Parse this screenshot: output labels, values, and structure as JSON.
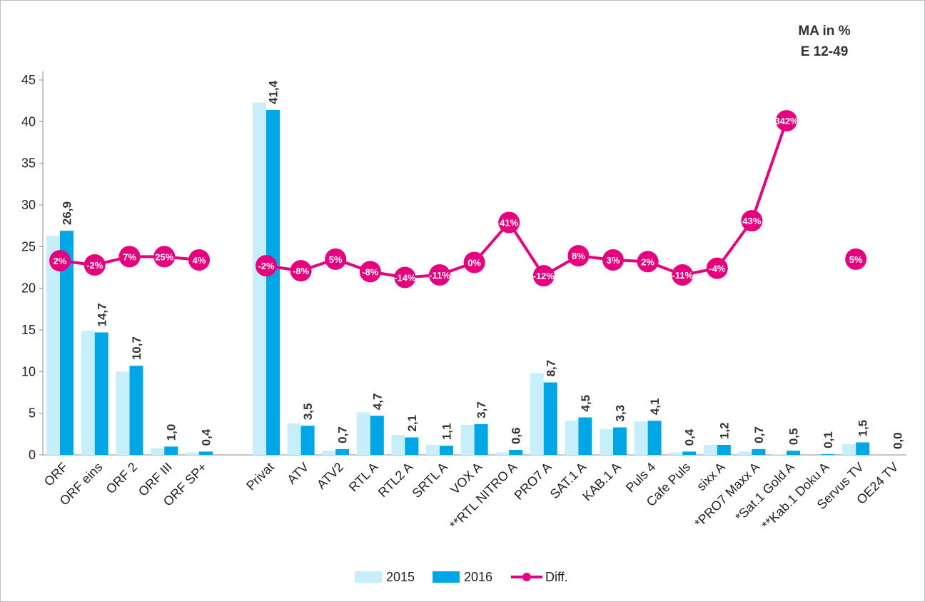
{
  "chart_data": {
    "type": "bar",
    "title_lines": [
      "MA in %",
      "E 12-49"
    ],
    "ylim": [
      0,
      45
    ],
    "yticks": [
      0,
      5,
      10,
      15,
      20,
      25,
      30,
      35,
      40,
      45
    ],
    "groups": [
      [
        "ORF",
        "ORF eins",
        "ORF 2",
        "ORF III",
        "ORF SP+"
      ],
      [
        "Privat",
        "ATV",
        "ATV2",
        "RTL A",
        "RTL2 A",
        "SRTL A",
        "VOX A",
        "**RTL NITRO A",
        "PRO7 A",
        "SAT.1 A",
        "KAB.1 A",
        "Puls 4",
        "Cafe Puls",
        "sixx A",
        "*PRO7 Maxx A",
        "*Sat.1 Gold A",
        "**Kab.1 Doku A",
        "Servus TV",
        "OE24 TV"
      ]
    ],
    "categories": [
      "ORF",
      "ORF eins",
      "ORF 2",
      "ORF III",
      "ORF SP+",
      "Privat",
      "ATV",
      "ATV2",
      "RTL A",
      "RTL2 A",
      "SRTL A",
      "VOX A",
      "**RTL NITRO A",
      "PRO7 A",
      "SAT.1 A",
      "KAB.1 A",
      "Puls 4",
      "Cafe Puls",
      "sixx A",
      "*PRO7 Maxx A",
      "*Sat.1 Gold A",
      "**Kab.1 Doku A",
      "Servus TV",
      "OE24 TV"
    ],
    "series": [
      {
        "name": "2015",
        "color": "#c6effb",
        "values": [
          26.3,
          14.9,
          10.0,
          0.8,
          0.3,
          42.3,
          3.8,
          0.5,
          5.1,
          2.4,
          1.2,
          3.6,
          0.3,
          9.8,
          4.1,
          3.1,
          4.0,
          0.3,
          1.2,
          0.4,
          0.1,
          0.0,
          1.3,
          0.0
        ]
      },
      {
        "name": "2016",
        "color": "#00a6e6",
        "values": [
          26.9,
          14.7,
          10.7,
          1.0,
          0.4,
          41.4,
          3.5,
          0.7,
          4.7,
          2.1,
          1.1,
          3.7,
          0.6,
          8.7,
          4.5,
          3.3,
          4.1,
          0.4,
          1.2,
          0.7,
          0.5,
          0.1,
          1.5,
          0.0
        ],
        "labels": [
          "26,9",
          "14,7",
          "10,7",
          "1,0",
          "0,4",
          "41,4",
          "3,5",
          "0,7",
          "4,7",
          "2,1",
          "1,1",
          "3,7",
          "0,6",
          "8,7",
          "4,5",
          "3,3",
          "4,1",
          "0,4",
          "1,2",
          "0,7",
          "0,5",
          "0,1",
          "1,5",
          "0,0"
        ]
      },
      {
        "name": "Diff.",
        "type": "line",
        "color": "#e6007e",
        "diff_labels": [
          "2%",
          "-2%",
          "7%",
          "25%",
          "4%",
          "-2%",
          "-8%",
          "5%",
          "-8%",
          "-14%",
          "-11%",
          "0%",
          "41%",
          "-12%",
          "8%",
          "3%",
          "2%",
          "-11%",
          "-4%",
          "43%",
          "342%",
          "",
          "5%",
          ""
        ],
        "plot_y": [
          23.3,
          22.8,
          23.8,
          23.8,
          23.4,
          22.7,
          22.1,
          23.5,
          22.0,
          21.3,
          21.6,
          23.1,
          27.9,
          21.5,
          23.9,
          23.4,
          23.2,
          21.6,
          22.4,
          28.1,
          40.1,
          null,
          23.5,
          null
        ]
      }
    ],
    "legend": {
      "position": "bottom"
    }
  }
}
